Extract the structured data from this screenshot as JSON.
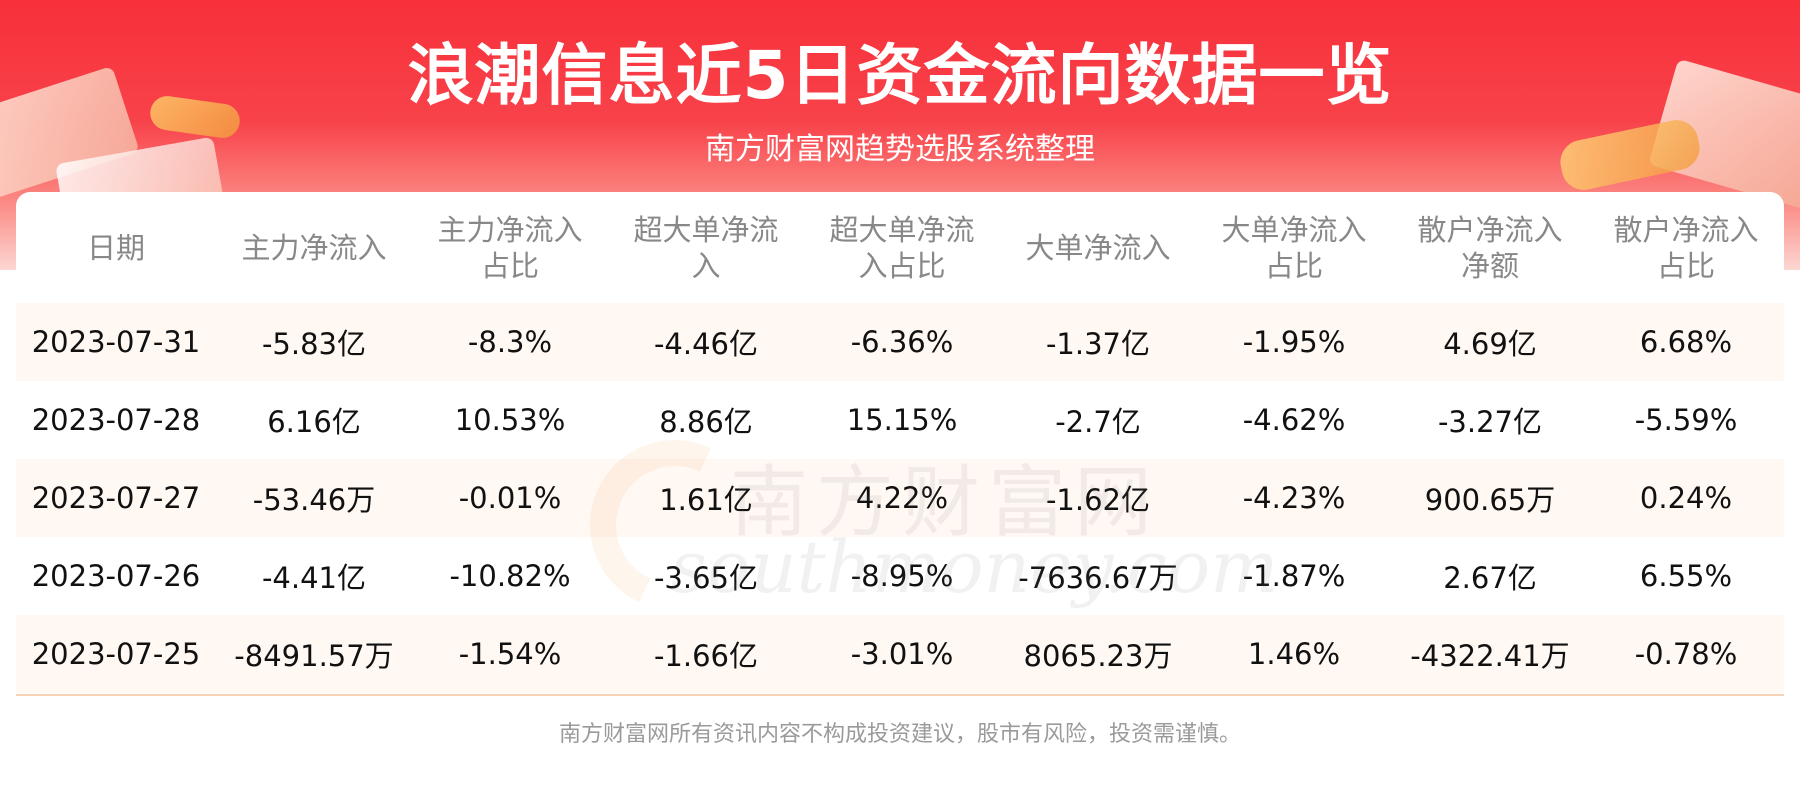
{
  "header": {
    "title": "浪潮信息近5日资金流向数据一览",
    "subtitle": "南方财富网趋势选股系统整理"
  },
  "watermark": {
    "cn": "南方财富网",
    "en": "southmoney.com"
  },
  "footer": {
    "disclaimer": "南方财富网所有资讯内容不构成投资建议，股市有风险，投资需谨慎。"
  },
  "colors": {
    "header_red": "#f7303a",
    "row_stripe": "#fff8f3",
    "header_text": "#888888"
  },
  "chart_data": {
    "type": "table",
    "title": "浪潮信息近5日资金流向数据一览",
    "subtitle": "南方财富网趋势选股系统整理",
    "columns": [
      "日期",
      "主力净流入",
      "主力净流入\n占比",
      "超大单净流\n入",
      "超大单净流\n入占比",
      "大单净流入",
      "大单净流入\n占比",
      "散户净流入\n净额",
      "散户净流入\n占比"
    ],
    "rows": [
      [
        "2023-07-31",
        "-5.83亿",
        "-8.3%",
        "-4.46亿",
        "-6.36%",
        "-1.37亿",
        "-1.95%",
        "4.69亿",
        "6.68%"
      ],
      [
        "2023-07-28",
        "6.16亿",
        "10.53%",
        "8.86亿",
        "15.15%",
        "-2.7亿",
        "-4.62%",
        "-3.27亿",
        "-5.59%"
      ],
      [
        "2023-07-27",
        "-53.46万",
        "-0.01%",
        "1.61亿",
        "4.22%",
        "-1.62亿",
        "-4.23%",
        "900.65万",
        "0.24%"
      ],
      [
        "2023-07-26",
        "-4.41亿",
        "-10.82%",
        "-3.65亿",
        "-8.95%",
        "-7636.67万",
        "-1.87%",
        "2.67亿",
        "6.55%"
      ],
      [
        "2023-07-25",
        "-8491.57万",
        "-1.54%",
        "-1.66亿",
        "-3.01%",
        "8065.23万",
        "1.46%",
        "-4322.41万",
        "-0.78%"
      ]
    ]
  }
}
